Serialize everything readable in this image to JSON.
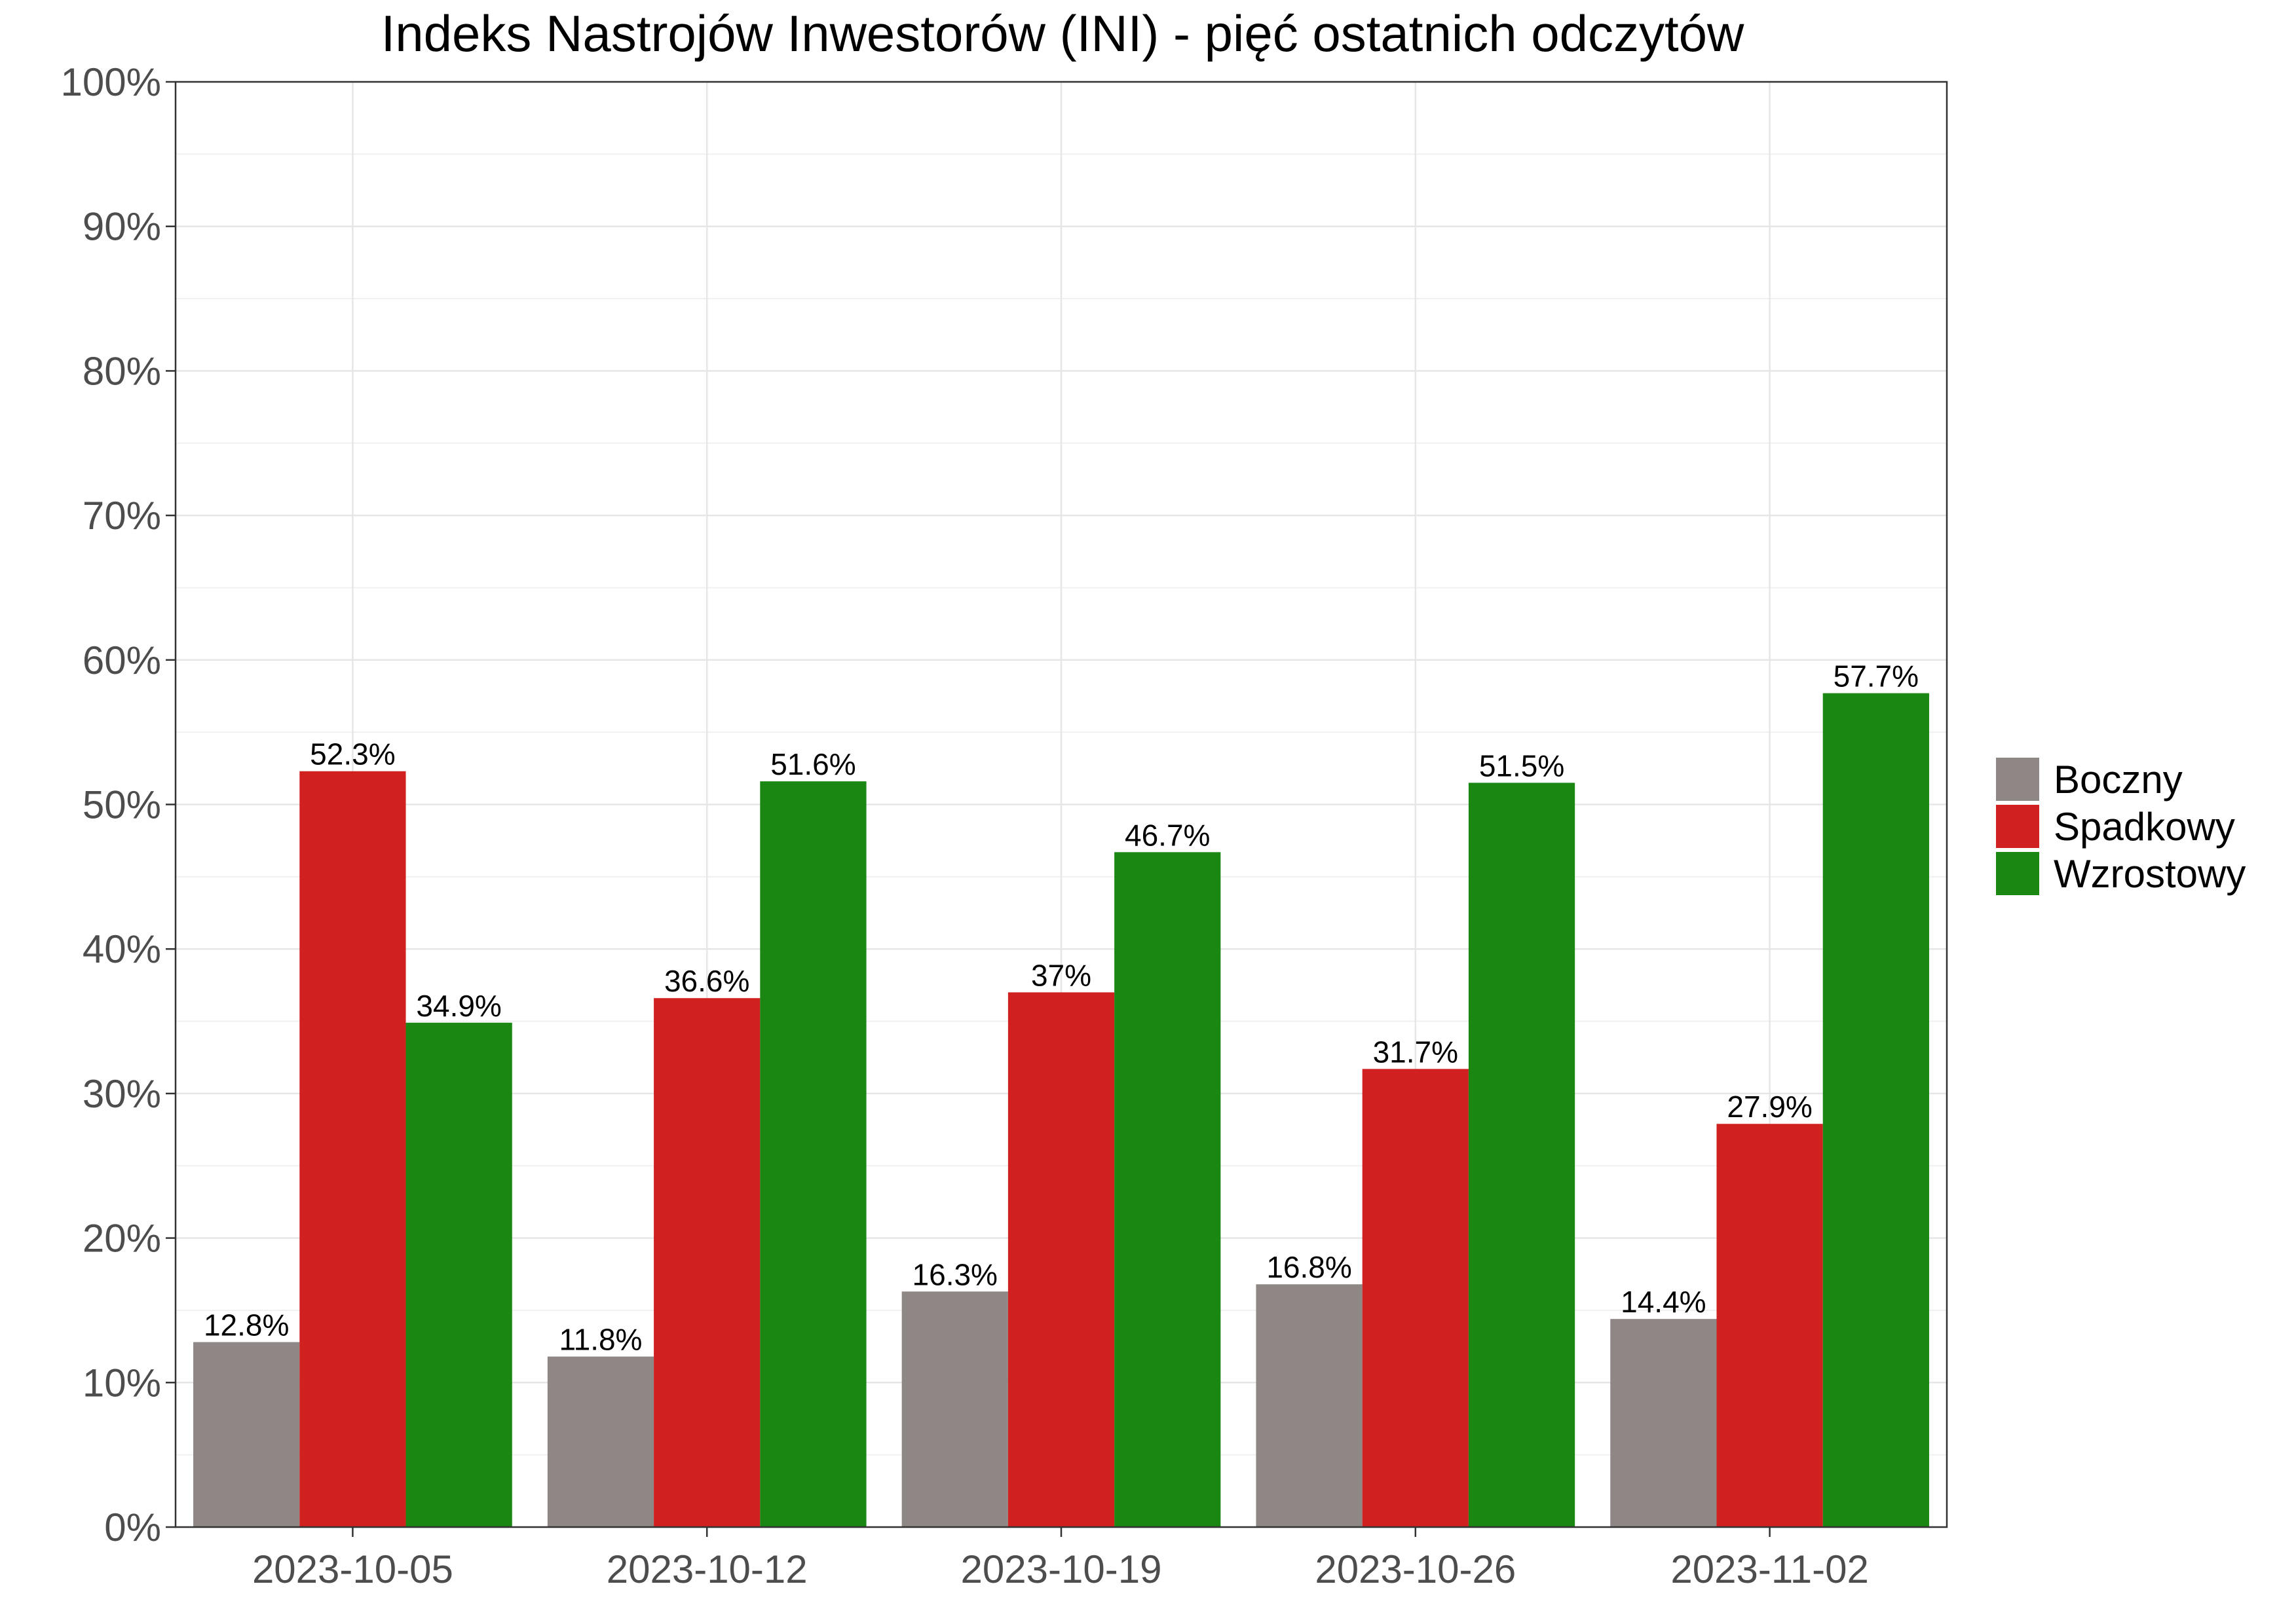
{
  "chart_data": {
    "type": "bar",
    "title": "Indeks Nastrojów Inwestorów (INI) - pięć ostatnich odczytów",
    "xlabel": "",
    "ylabel": "",
    "ylim": [
      0,
      100
    ],
    "yticks": [
      "0%",
      "10%",
      "20%",
      "30%",
      "40%",
      "50%",
      "60%",
      "70%",
      "80%",
      "90%",
      "100%"
    ],
    "categories": [
      "2023-10-05",
      "2023-10-12",
      "2023-10-19",
      "2023-10-26",
      "2023-11-02"
    ],
    "series": [
      {
        "name": "Boczny",
        "color": "#8f8785",
        "values": [
          12.8,
          11.8,
          16.3,
          16.8,
          14.4
        ],
        "labels": [
          "12.8%",
          "11.8%",
          "16.3%",
          "16.8%",
          "14.4%"
        ]
      },
      {
        "name": "Spadkowy",
        "color": "#d12020",
        "values": [
          52.3,
          36.6,
          37,
          31.7,
          27.9
        ],
        "labels": [
          "52.3%",
          "36.6%",
          "37%",
          "31.7%",
          "27.9%"
        ]
      },
      {
        "name": "Wzrostowy",
        "color": "#1a8712",
        "values": [
          34.9,
          51.6,
          46.7,
          51.5,
          57.7
        ],
        "labels": [
          "34.9%",
          "51.6%",
          "46.7%",
          "51.5%",
          "57.7%"
        ]
      }
    ],
    "grid": true,
    "legend_position": "right"
  }
}
